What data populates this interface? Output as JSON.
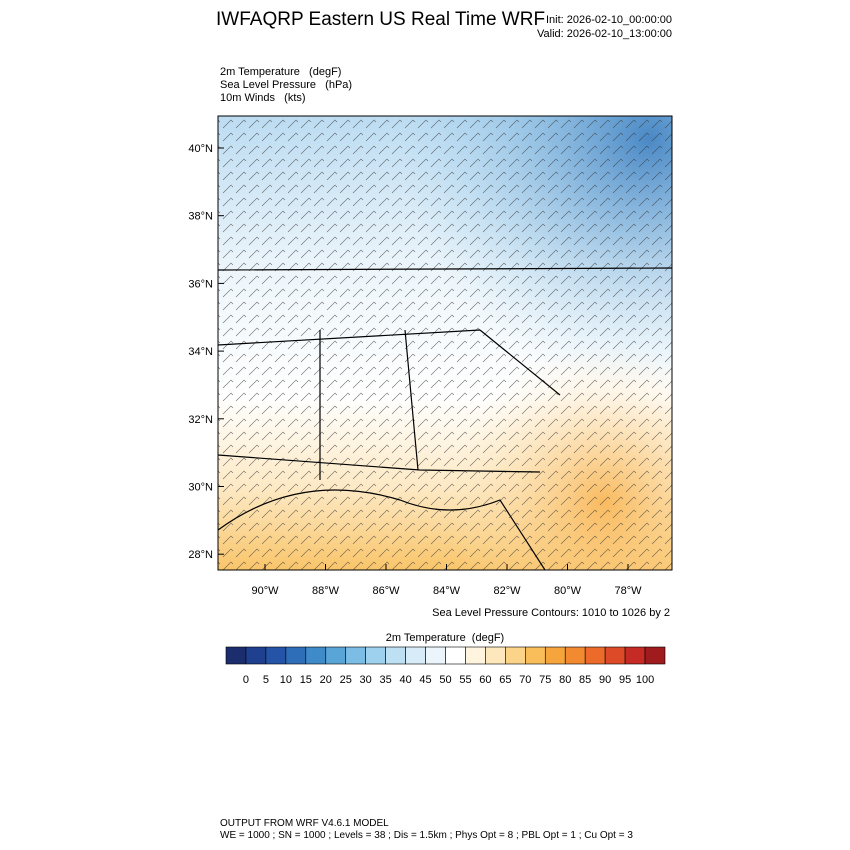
{
  "header": {
    "title": "IWFAQRP Eastern US Real Time WRF",
    "init": "Init: 2026-02-10_00:00:00",
    "valid": "Valid: 2026-02-10_13:00:00"
  },
  "fields": [
    "2m Temperature   (degF)",
    "Sea Level Pressure   (hPa)",
    "10m Winds   (kts)"
  ],
  "map": {
    "lat_labels": [
      "40°N",
      "38°N",
      "36°N",
      "34°N",
      "32°N",
      "30°N",
      "28°N"
    ],
    "lon_labels": [
      "90°W",
      "88°W",
      "86°W",
      "84°W",
      "82°W",
      "80°W",
      "78°W"
    ],
    "contour_note": "Sea Level Pressure Contours: 1010 to 1026 by 2"
  },
  "colorbar": {
    "title": "2m Temperature  (degF)",
    "labels": [
      "0",
      "5",
      "10",
      "15",
      "20",
      "25",
      "30",
      "35",
      "40",
      "45",
      "50",
      "55",
      "60",
      "65",
      "70",
      "75",
      "80",
      "85",
      "90",
      "95",
      "100"
    ],
    "colors": [
      "#1c2d6e",
      "#1f3f8f",
      "#2453a8",
      "#2e6db8",
      "#3f8ac9",
      "#5aa5d8",
      "#7cbde5",
      "#9dd1ee",
      "#bde0f3",
      "#d7ecf8",
      "#ebf5fb",
      "#ffffff",
      "#fff4de",
      "#fde8bd",
      "#fbd48a",
      "#f9be5a",
      "#f6a53d",
      "#f28a30",
      "#ec6b2b",
      "#dd4a28",
      "#c52a25",
      "#a01b1d"
    ]
  },
  "footer": [
    "OUTPUT FROM WRF V4.6.1 MODEL",
    "WE = 1000 ; SN = 1000 ; Levels = 38 ; Dis = 1.5km ; Phys Opt = 8 ; PBL Opt = 1 ; Cu Opt = 3"
  ]
}
